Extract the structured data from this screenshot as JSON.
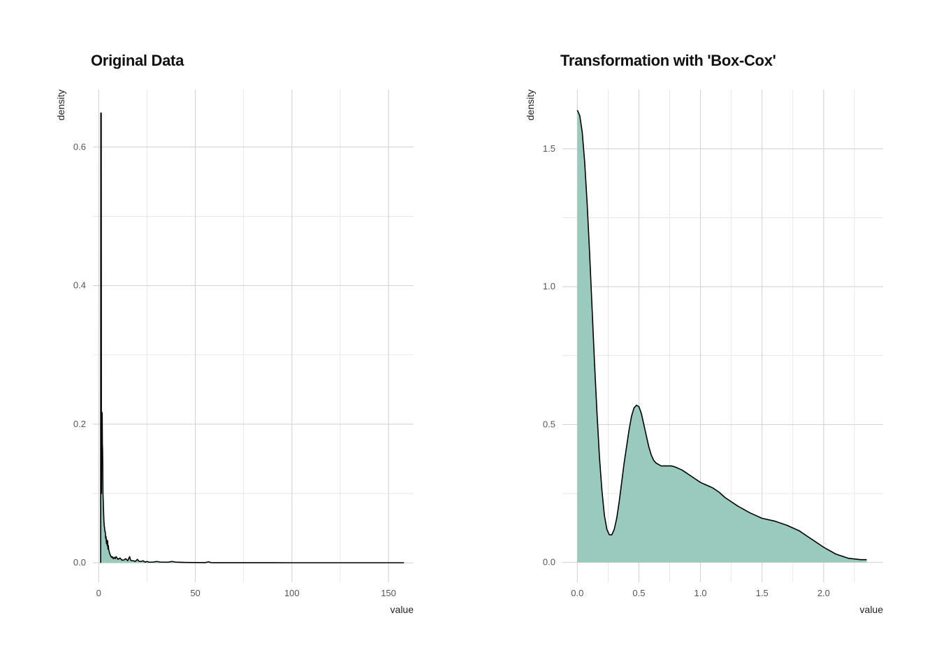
{
  "chart_data": [
    {
      "type": "area",
      "title": "Original Data",
      "xlabel": "value",
      "ylabel": "density",
      "xlim": [
        -3,
        163
      ],
      "ylim": [
        -0.028,
        0.683
      ],
      "x_ticks": [
        0,
        50,
        100,
        150
      ],
      "x_tick_labels": [
        "0",
        "50",
        "100",
        "150"
      ],
      "y_ticks": [
        0,
        0.2,
        0.4,
        0.6
      ],
      "y_tick_labels": [
        "0.0",
        "0.2",
        "0.4",
        "0.6"
      ],
      "grid": true,
      "legend": "none",
      "fill_color": "#99cabd",
      "line_color": "#000000",
      "series": [
        {
          "x": [
            1,
            1.1,
            1.3,
            1.4,
            1.6,
            1.7,
            1.8,
            1.9,
            2.0,
            2.1,
            2.2,
            2.35,
            2.5,
            2.7,
            2.9,
            3.0,
            3.2,
            3.4,
            3.6,
            3.8,
            4.0,
            4.2,
            4.4,
            4.6,
            4.8,
            5.0,
            5.2,
            5.4,
            5.6,
            5.9,
            6.2,
            6.6,
            7.0,
            7.5,
            8,
            8.5,
            9,
            10,
            11,
            12,
            13,
            14,
            15,
            16,
            16.5,
            17,
            18,
            19,
            20,
            21,
            22,
            23,
            24,
            25,
            26,
            28,
            30,
            32,
            34,
            36,
            38,
            40,
            45,
            50,
            55,
            57,
            58,
            60,
            70,
            80,
            90,
            100,
            110,
            120,
            130,
            140,
            150,
            158
          ],
          "y": [
            0,
            0.649,
            0.649,
            0.1,
            0.217,
            0.217,
            0.215,
            0.17,
            0.165,
            0.14,
            0.1,
            0.09,
            0.075,
            0.06,
            0.052,
            0.052,
            0.045,
            0.045,
            0.035,
            0.038,
            0.028,
            0.033,
            0.025,
            0.032,
            0.02,
            0.025,
            0.018,
            0.017,
            0.014,
            0.012,
            0.01,
            0.008,
            0.009,
            0.006,
            0.008,
            0.006,
            0.009,
            0.005,
            0.007,
            0.004,
            0.004,
            0.006,
            0.003,
            0.009,
            0.004,
            0.003,
            0.003,
            0.002,
            0.005,
            0.002,
            0.002,
            0.003,
            0.001,
            0.002,
            0.001,
            0.001,
            0.002,
            0.001,
            0.001,
            0.001,
            0.002,
            0.001,
            0.0006,
            0.0004,
            0.0003,
            0.0015,
            0.0003,
            0.0002,
            0.0002,
            0.0002,
            0.0002,
            0.0001,
            0.0001,
            0.0001,
            0.0001,
            0.0001,
            0.0001,
            0.0001
          ]
        }
      ]
    },
    {
      "type": "area",
      "title": "Transformation with 'Box-Cox'",
      "xlabel": "value",
      "ylabel": "density",
      "xlim": [
        -0.121,
        2.483
      ],
      "ylim": [
        -0.072,
        1.715
      ],
      "x_ticks": [
        0,
        0.5,
        1.0,
        1.5,
        2.0
      ],
      "x_tick_labels": [
        "0.0",
        "0.5",
        "1.0",
        "1.5",
        "2.0"
      ],
      "y_ticks": [
        0,
        0.5,
        1.0,
        1.5
      ],
      "y_tick_labels": [
        "0.0",
        "0.5",
        "1.0",
        "1.5"
      ],
      "grid": true,
      "legend": "none",
      "fill_color": "#99cabd",
      "line_color": "#000000",
      "series": [
        {
          "x": [
            0,
            0.02,
            0.04,
            0.06,
            0.08,
            0.1,
            0.12,
            0.14,
            0.16,
            0.18,
            0.2,
            0.22,
            0.24,
            0.26,
            0.28,
            0.3,
            0.32,
            0.34,
            0.36,
            0.38,
            0.4,
            0.42,
            0.44,
            0.46,
            0.48,
            0.5,
            0.52,
            0.54,
            0.56,
            0.58,
            0.6,
            0.62,
            0.64,
            0.66,
            0.68,
            0.7,
            0.72,
            0.74,
            0.76,
            0.78,
            0.8,
            0.85,
            0.9,
            0.95,
            1.0,
            1.05,
            1.1,
            1.15,
            1.2,
            1.3,
            1.4,
            1.5,
            1.6,
            1.7,
            1.8,
            1.9,
            2.0,
            2.1,
            2.2,
            2.3,
            2.35
          ],
          "y": [
            1.64,
            1.62,
            1.56,
            1.45,
            1.3,
            1.12,
            0.92,
            0.72,
            0.54,
            0.38,
            0.26,
            0.17,
            0.12,
            0.1,
            0.1,
            0.12,
            0.16,
            0.22,
            0.29,
            0.36,
            0.42,
            0.48,
            0.53,
            0.56,
            0.57,
            0.565,
            0.54,
            0.5,
            0.46,
            0.42,
            0.39,
            0.37,
            0.36,
            0.355,
            0.35,
            0.35,
            0.35,
            0.35,
            0.35,
            0.348,
            0.345,
            0.335,
            0.32,
            0.305,
            0.29,
            0.28,
            0.27,
            0.255,
            0.235,
            0.205,
            0.18,
            0.16,
            0.15,
            0.135,
            0.115,
            0.085,
            0.055,
            0.03,
            0.015,
            0.01,
            0.01
          ]
        }
      ]
    }
  ]
}
